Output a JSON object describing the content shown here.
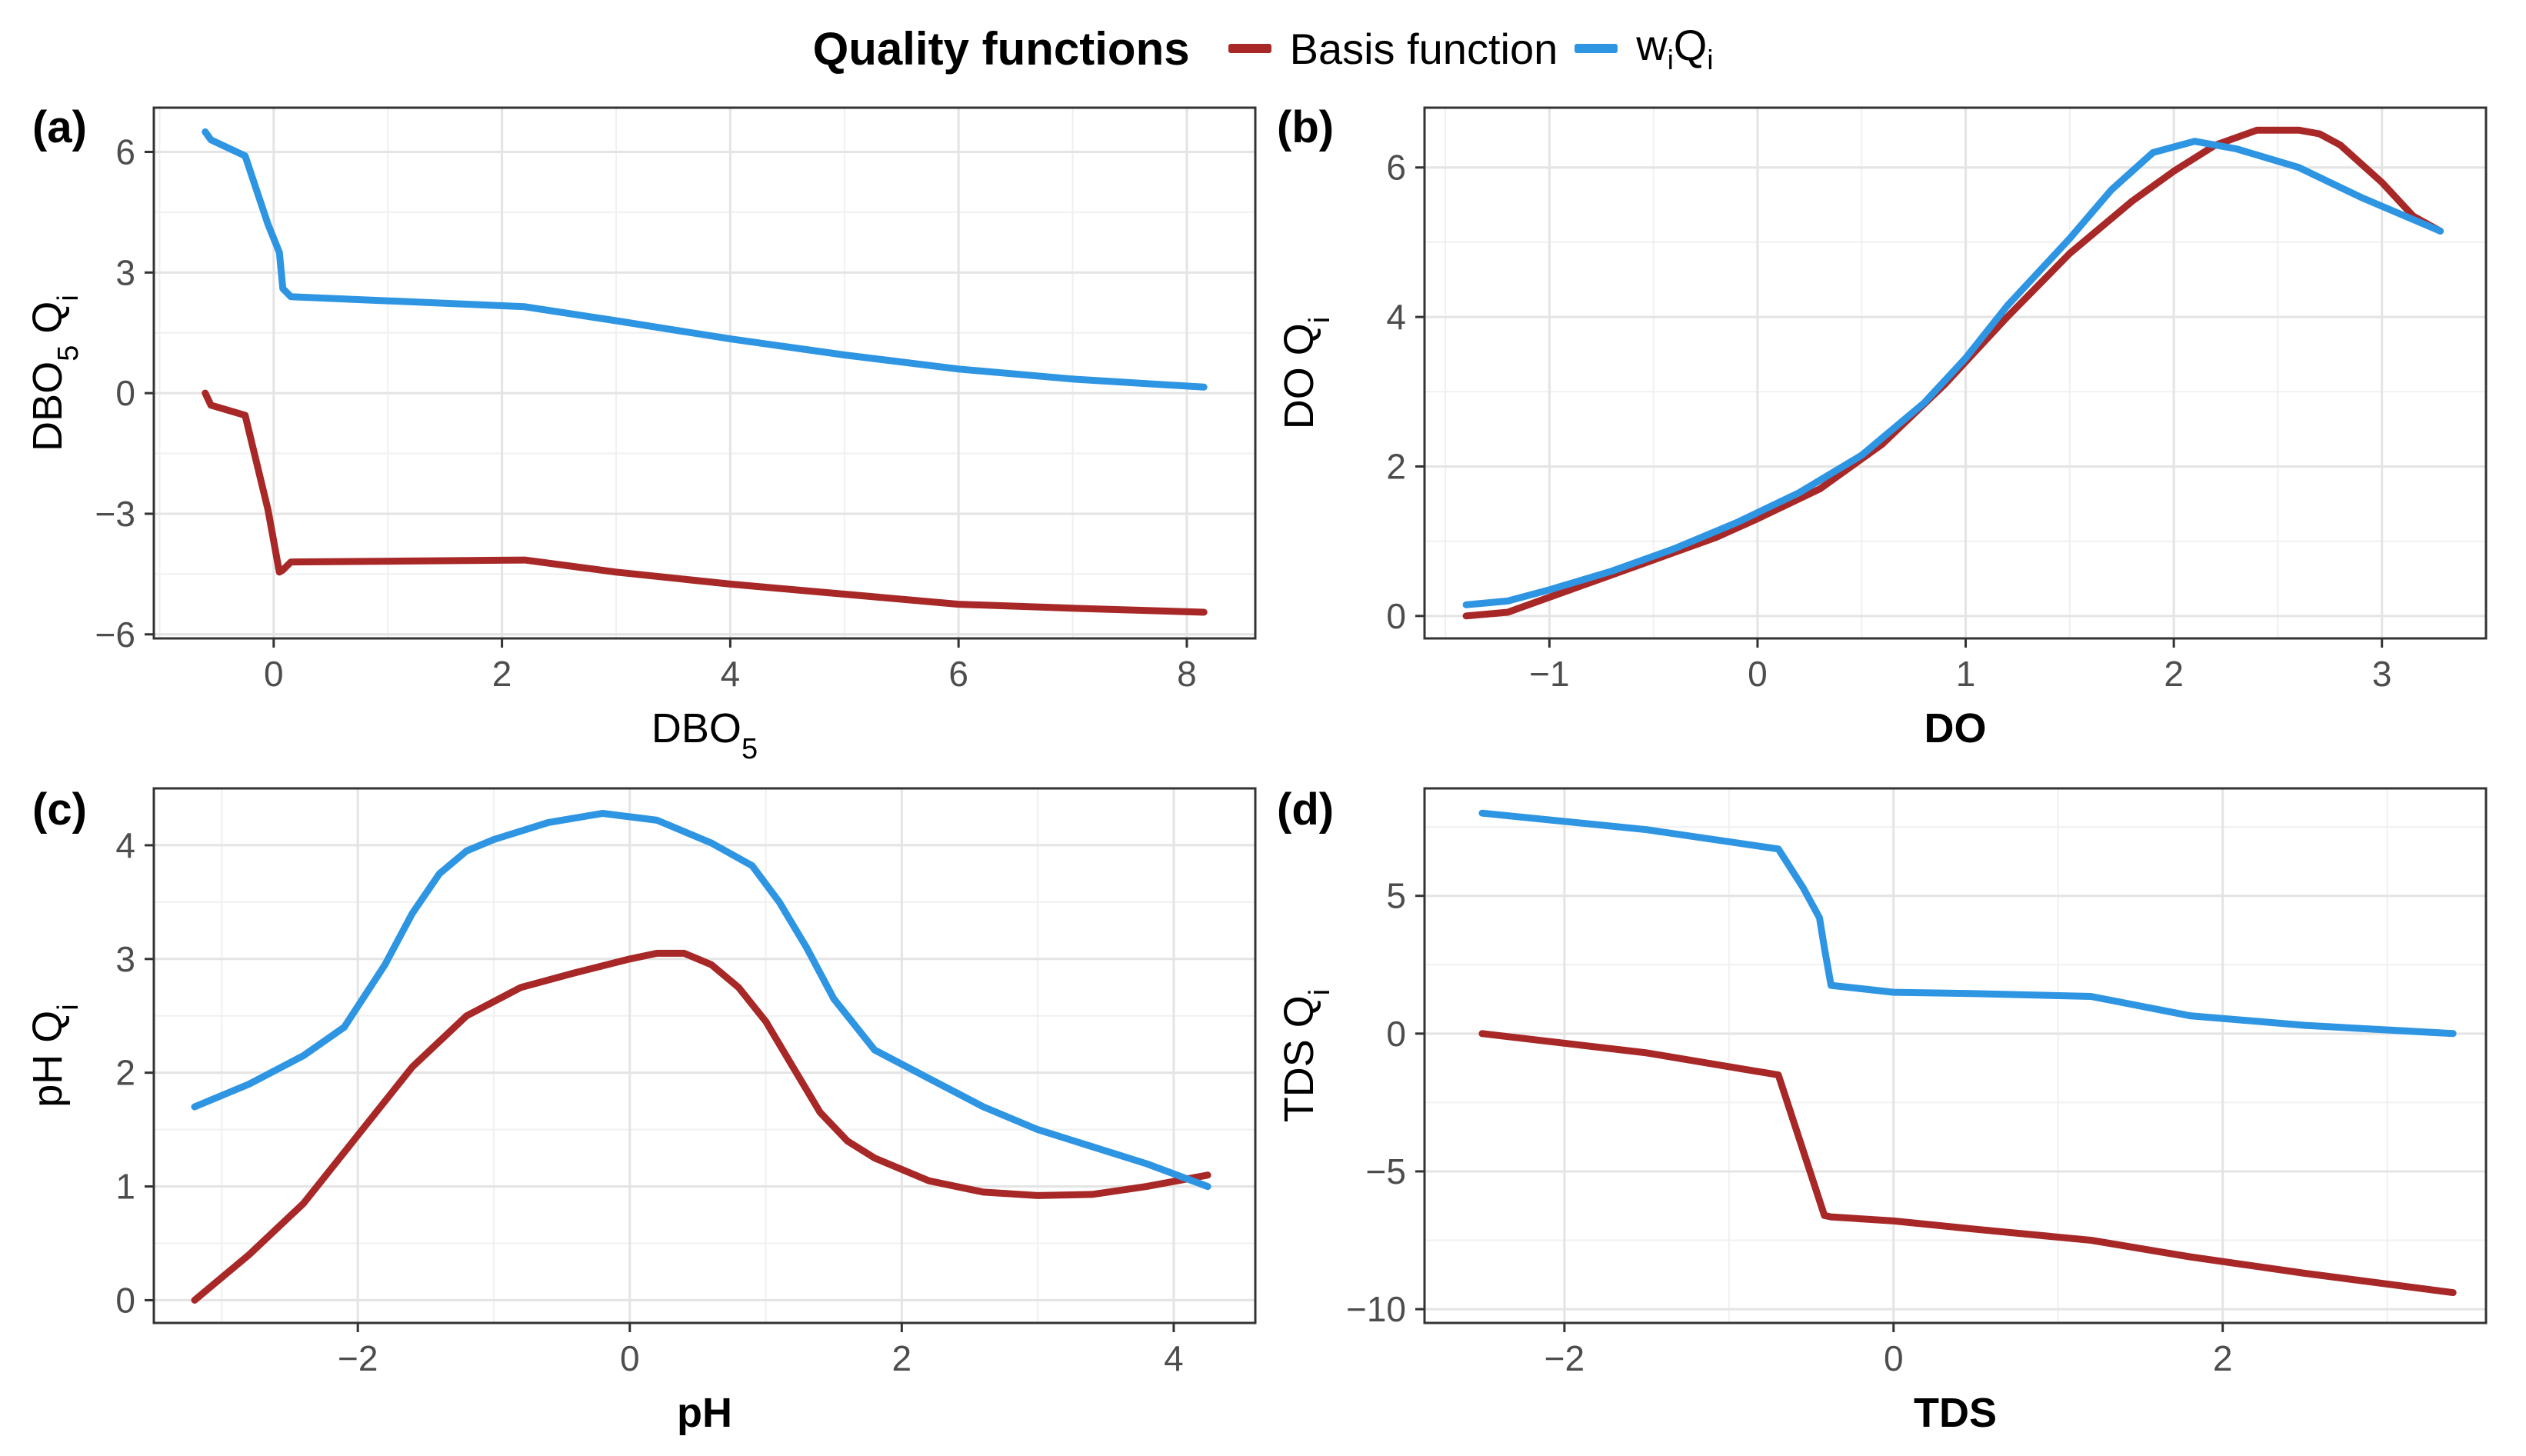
{
  "legend": {
    "title": "Quality functions",
    "items": [
      {
        "label": "Basis function",
        "color": "#A82828"
      },
      {
        "label": "wiQi",
        "color": "#2E95E3"
      }
    ]
  },
  "chart_data": [
    {
      "id": "a",
      "type": "line",
      "panel_label": "(a)",
      "xlabel": "DBO5",
      "ylabel": "DBO5 Qi",
      "xlabel_bold": false,
      "xlim": [
        -1.05,
        8.6
      ],
      "ylim": [
        -6.1,
        7.1
      ],
      "xticks": [
        0,
        2,
        4,
        6,
        8
      ],
      "yticks": [
        -6,
        -3,
        0,
        3,
        6
      ],
      "series": [
        {
          "name": "Basis function",
          "x": [
            -0.6,
            -0.55,
            -0.25,
            -0.05,
            0.05,
            0.08,
            0.15,
            2.2,
            3.0,
            4.0,
            5.0,
            6.0,
            7.0,
            8.15
          ],
          "y": [
            0.0,
            -0.3,
            -0.55,
            -2.9,
            -4.45,
            -4.4,
            -4.2,
            -4.15,
            -4.45,
            -4.75,
            -5.0,
            -5.25,
            -5.35,
            -5.45
          ]
        },
        {
          "name": "wiQi",
          "x": [
            -0.6,
            -0.55,
            -0.25,
            -0.05,
            0.05,
            0.08,
            0.15,
            2.2,
            3.0,
            4.0,
            5.0,
            6.0,
            7.0,
            8.15
          ],
          "y": [
            6.5,
            6.3,
            5.9,
            4.2,
            3.5,
            2.6,
            2.4,
            2.15,
            1.8,
            1.35,
            0.95,
            0.6,
            0.35,
            0.15
          ]
        }
      ]
    },
    {
      "id": "b",
      "type": "line",
      "panel_label": "(b)",
      "xlabel": "DO",
      "ylabel": "DO Qi",
      "xlabel_bold": true,
      "xlim": [
        -1.6,
        3.5
      ],
      "ylim": [
        -0.3,
        6.8
      ],
      "xticks": [
        -1,
        0,
        1,
        2,
        3
      ],
      "yticks": [
        0,
        2,
        4,
        6
      ],
      "series": [
        {
          "name": "Basis function",
          "x": [
            -1.4,
            -1.2,
            -1.0,
            -0.8,
            -0.5,
            -0.2,
            0.0,
            0.3,
            0.6,
            0.9,
            1.2,
            1.5,
            1.8,
            2.0,
            2.2,
            2.4,
            2.6,
            2.7,
            2.8,
            3.0,
            3.15,
            3.28
          ],
          "y": [
            0.0,
            0.05,
            0.25,
            0.45,
            0.75,
            1.05,
            1.3,
            1.7,
            2.3,
            3.1,
            4.0,
            4.85,
            5.55,
            5.95,
            6.3,
            6.5,
            6.5,
            6.45,
            6.3,
            5.8,
            5.35,
            5.15
          ]
        },
        {
          "name": "wiQi",
          "x": [
            -1.4,
            -1.2,
            -1.0,
            -0.7,
            -0.4,
            -0.1,
            0.2,
            0.5,
            0.8,
            1.0,
            1.2,
            1.5,
            1.7,
            1.9,
            2.1,
            2.3,
            2.6,
            2.9,
            3.28
          ],
          "y": [
            0.15,
            0.2,
            0.35,
            0.6,
            0.9,
            1.25,
            1.65,
            2.15,
            2.85,
            3.45,
            4.15,
            5.05,
            5.7,
            6.2,
            6.35,
            6.25,
            6.0,
            5.6,
            5.15
          ]
        }
      ]
    },
    {
      "id": "c",
      "type": "line",
      "panel_label": "(c)",
      "xlabel": "pH",
      "ylabel": "pH Qi",
      "xlabel_bold": true,
      "xlim": [
        -3.5,
        4.6
      ],
      "ylim": [
        -0.2,
        4.5
      ],
      "xticks": [
        -2,
        0,
        2,
        4
      ],
      "yticks": [
        0,
        1,
        2,
        3,
        4
      ],
      "series": [
        {
          "name": "Basis function",
          "x": [
            -3.2,
            -2.8,
            -2.4,
            -2.0,
            -1.6,
            -1.2,
            -0.8,
            -0.4,
            0.0,
            0.2,
            0.4,
            0.6,
            0.8,
            1.0,
            1.2,
            1.4,
            1.6,
            1.8,
            2.2,
            2.6,
            3.0,
            3.4,
            3.8,
            4.25
          ],
          "y": [
            0.0,
            0.4,
            0.85,
            1.45,
            2.05,
            2.5,
            2.75,
            2.88,
            3.0,
            3.05,
            3.05,
            2.95,
            2.75,
            2.45,
            2.05,
            1.65,
            1.4,
            1.25,
            1.05,
            0.95,
            0.92,
            0.93,
            1.0,
            1.1
          ]
        },
        {
          "name": "wiQi",
          "x": [
            -3.2,
            -2.8,
            -2.4,
            -2.1,
            -1.8,
            -1.6,
            -1.4,
            -1.2,
            -1.0,
            -0.6,
            -0.2,
            0.2,
            0.6,
            0.9,
            1.1,
            1.3,
            1.5,
            1.8,
            2.2,
            2.6,
            3.0,
            3.4,
            3.8,
            4.25
          ],
          "y": [
            1.7,
            1.9,
            2.15,
            2.4,
            2.95,
            3.4,
            3.75,
            3.95,
            4.05,
            4.2,
            4.28,
            4.22,
            4.02,
            3.82,
            3.5,
            3.1,
            2.65,
            2.2,
            1.95,
            1.7,
            1.5,
            1.35,
            1.2,
            1.0
          ]
        }
      ]
    },
    {
      "id": "d",
      "type": "line",
      "panel_label": "(d)",
      "xlabel": "TDS",
      "ylabel": "TDS Qi",
      "xlabel_bold": true,
      "xlim": [
        -2.85,
        3.6
      ],
      "ylim": [
        -10.5,
        8.9
      ],
      "xticks": [
        -2,
        0,
        2
      ],
      "yticks": [
        -10,
        -5,
        0,
        5
      ],
      "series": [
        {
          "name": "Basis function",
          "x": [
            -2.5,
            -1.5,
            -0.7,
            -0.42,
            -0.38,
            0.0,
            0.5,
            1.2,
            1.8,
            2.5,
            3.4
          ],
          "y": [
            0.0,
            -0.7,
            -1.5,
            -6.6,
            -6.65,
            -6.8,
            -7.1,
            -7.5,
            -8.1,
            -8.7,
            -9.4
          ]
        },
        {
          "name": "wiQi",
          "x": [
            -2.5,
            -1.5,
            -0.7,
            -0.55,
            -0.45,
            -0.42,
            -0.38,
            0.0,
            0.5,
            1.2,
            1.5,
            1.8,
            2.5,
            3.4
          ],
          "y": [
            8.0,
            7.4,
            6.7,
            5.3,
            4.2,
            3.1,
            1.75,
            1.5,
            1.45,
            1.35,
            1.0,
            0.65,
            0.3,
            0.0
          ]
        }
      ]
    }
  ]
}
